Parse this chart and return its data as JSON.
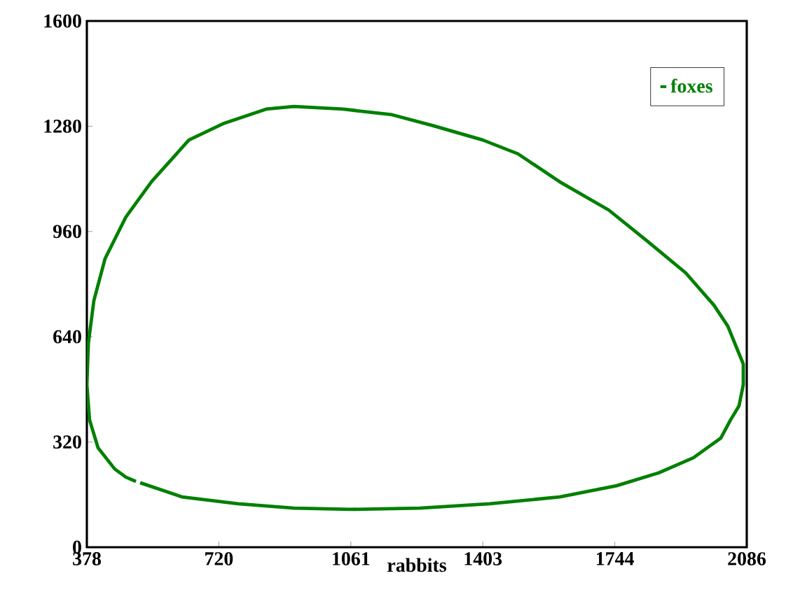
{
  "chart_data": {
    "type": "line",
    "xlabel": "rabbits",
    "x": [
      516,
      624,
      769,
      914,
      1059,
      1240,
      1421,
      1602,
      1749,
      1858,
      1948,
      2019,
      2044,
      2066,
      2077,
      2077,
      2062,
      2037,
      2001,
      1928,
      1827,
      1729,
      1602,
      1494,
      1403,
      1276,
      1168,
      1041,
      914,
      842,
      733,
      642,
      545,
      479,
      425,
      396,
      382,
      378,
      385,
      407,
      450,
      479,
      505
    ],
    "series": [
      {
        "name": "foxes",
        "color": "#008000",
        "values": [
          196,
          153,
          132,
          119,
          115,
          119,
          132,
          153,
          187,
          226,
          272,
          332,
          387,
          430,
          494,
          557,
          600,
          672,
          736,
          834,
          932,
          1025,
          1111,
          1196,
          1238,
          1281,
          1315,
          1332,
          1340,
          1332,
          1289,
          1238,
          1111,
          1004,
          877,
          749,
          621,
          494,
          387,
          302,
          238,
          213,
          200
        ]
      }
    ],
    "xlim": [
      378,
      2086
    ],
    "ylim": [
      0,
      1600
    ],
    "xticks": [
      {
        "value": 378,
        "label": "378"
      },
      {
        "value": 719.6,
        "label": "720"
      },
      {
        "value": 1061.2,
        "label": "1061"
      },
      {
        "value": 1402.8,
        "label": "1403"
      },
      {
        "value": 1744.4,
        "label": "1744"
      },
      {
        "value": 2086,
        "label": "2086"
      }
    ],
    "yticks": [
      0,
      320,
      640,
      960,
      1280,
      1600
    ],
    "legend": "top right",
    "grid": false
  }
}
